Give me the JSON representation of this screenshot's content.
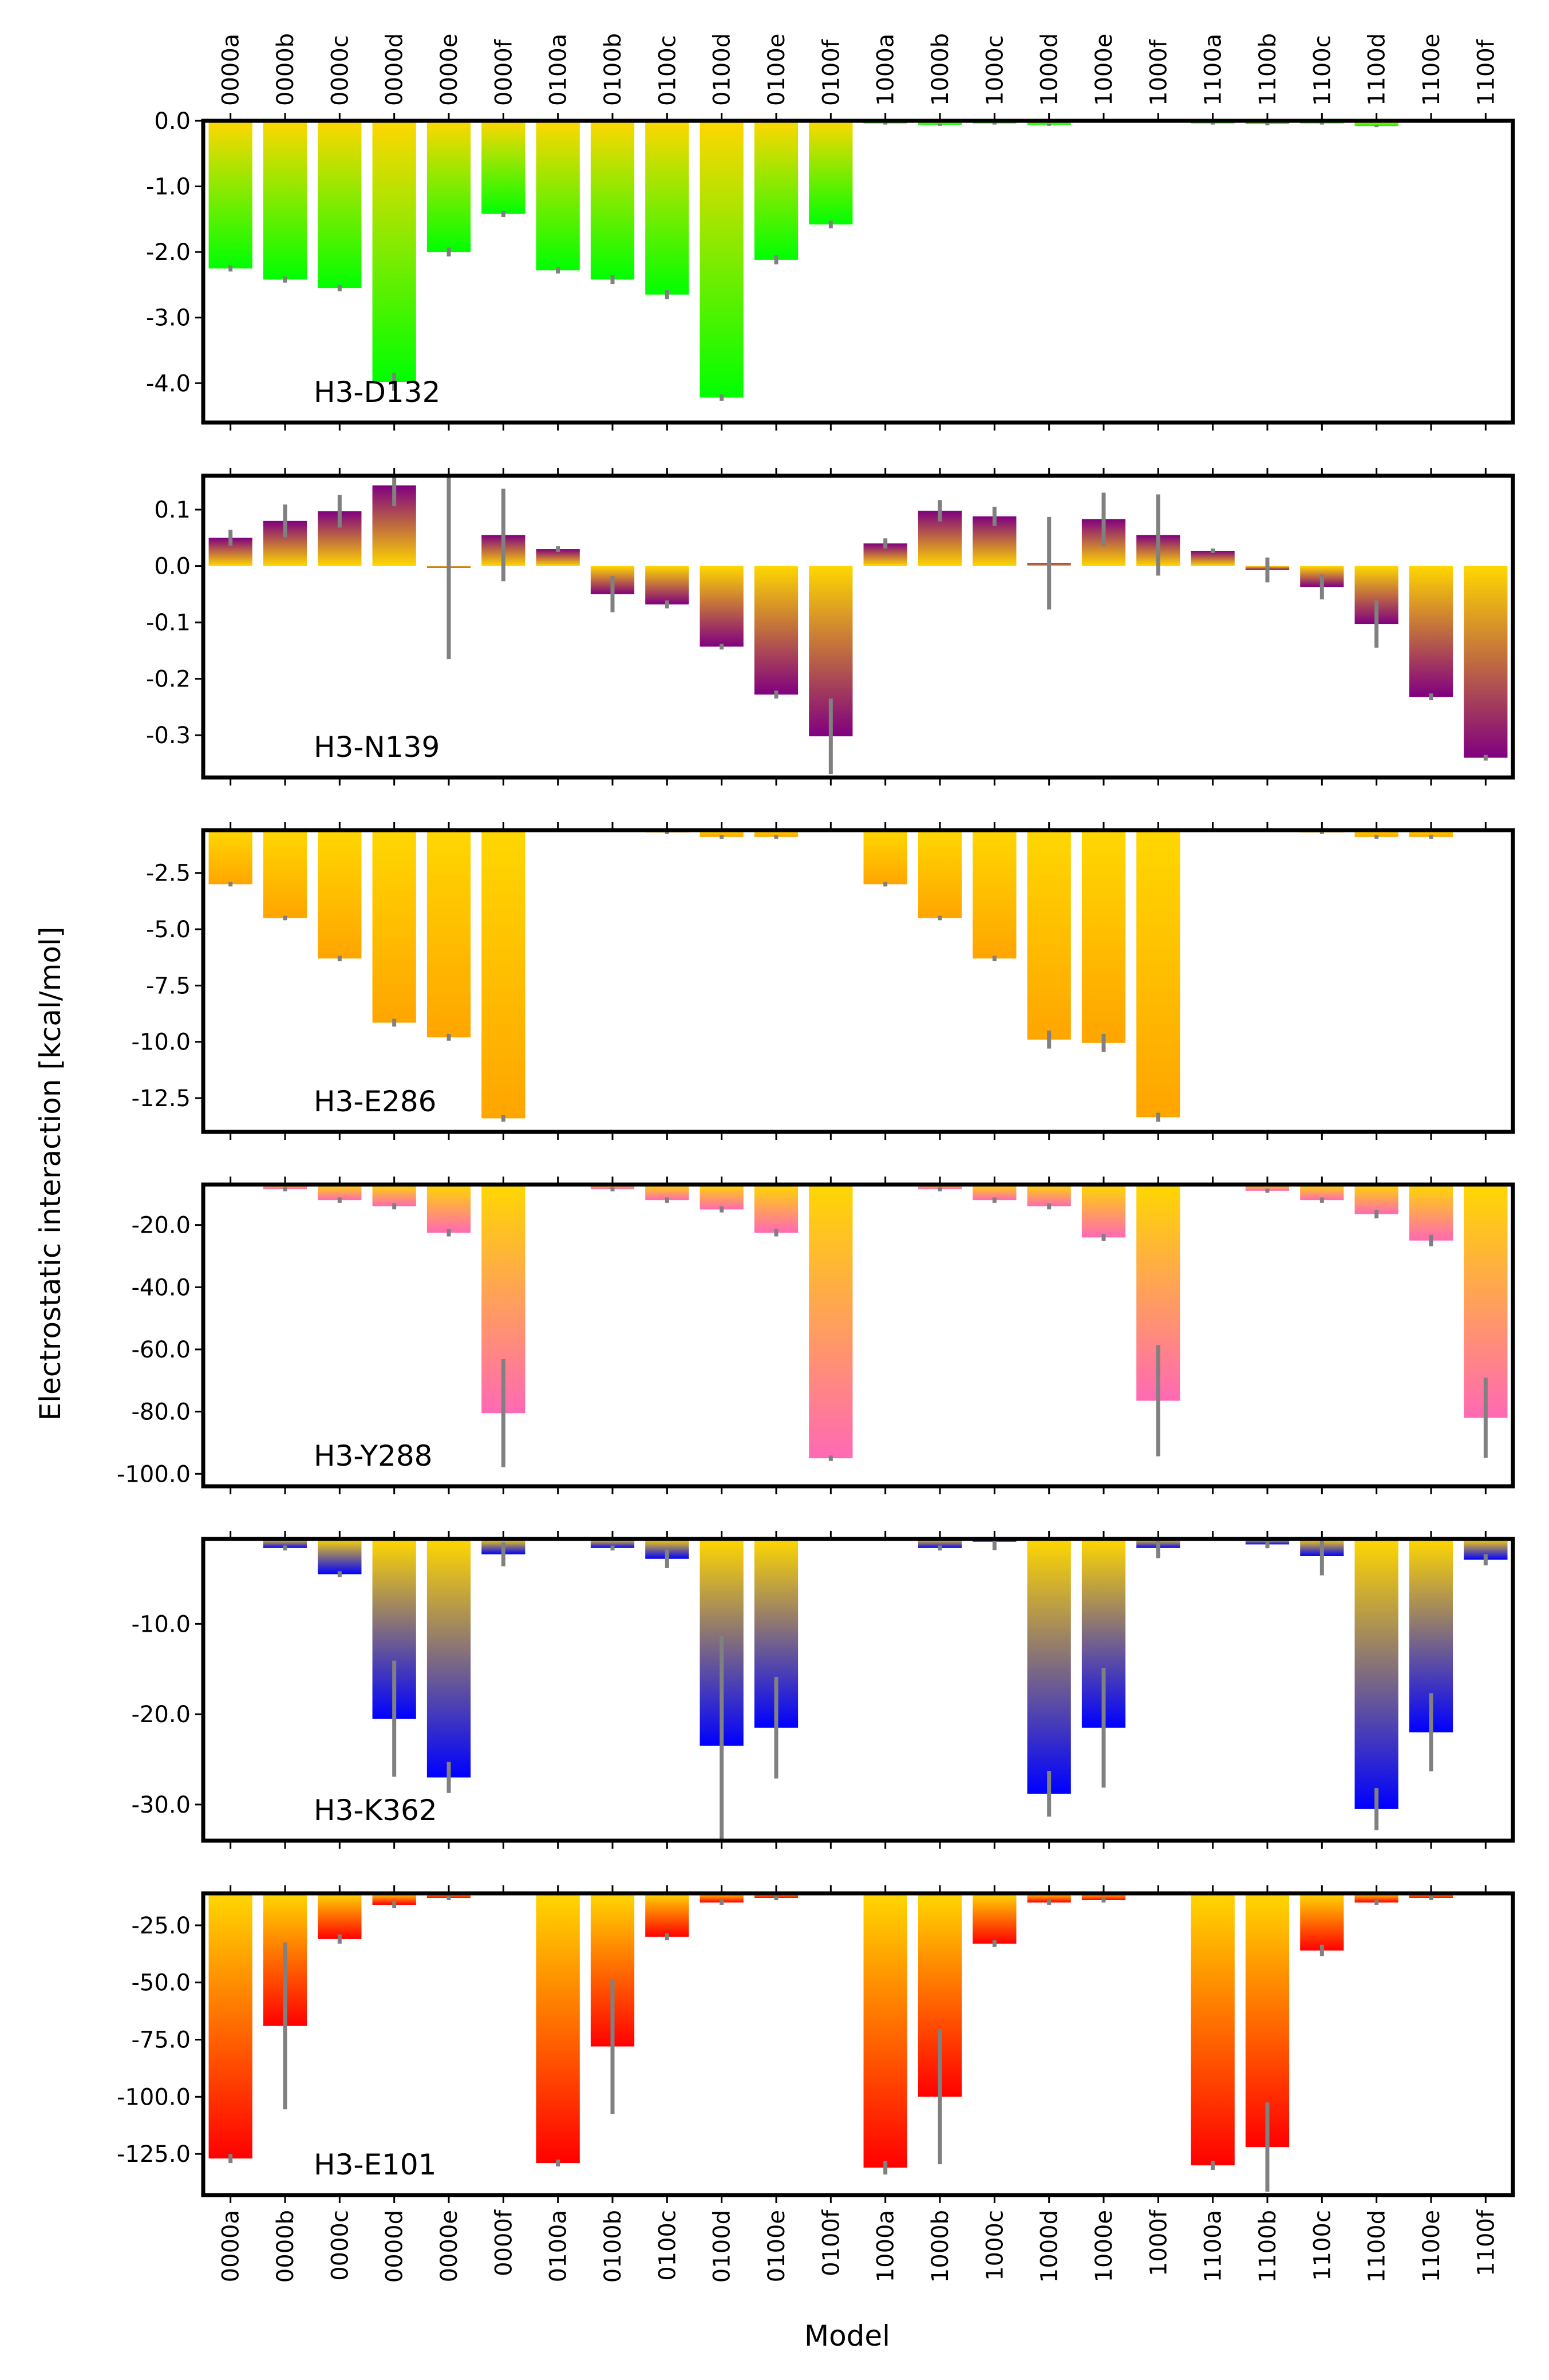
{
  "figure": {
    "ylabel": "Electrostatic interaction [kcal/mol]",
    "xlabel": "Model"
  },
  "chart_data": [
    {
      "type": "bar",
      "title": "H3-D132",
      "color": "#00ff00",
      "ylim": [
        -4.6,
        0.0
      ],
      "yticks": [
        0.0,
        -1.0,
        -2.0,
        -3.0,
        -4.0
      ],
      "ytick_labels": [
        "0.0",
        "-1.0",
        "-2.0",
        "-3.0",
        "-4.0"
      ],
      "categories": [
        "0000a",
        "0000b",
        "0000c",
        "0000d",
        "0000e",
        "0000f",
        "0100a",
        "0100b",
        "0100c",
        "0100d",
        "0100e",
        "0100f",
        "1000a",
        "1000b",
        "1000c",
        "1000d",
        "1000e",
        "1000f",
        "1100a",
        "1100b",
        "1100c",
        "1100d",
        "1100e",
        "1100f"
      ],
      "values": [
        -2.25,
        -2.42,
        -2.55,
        -3.98,
        -2.0,
        -1.42,
        -2.28,
        -2.42,
        -2.65,
        -4.22,
        -2.12,
        -1.58,
        -0.04,
        -0.06,
        -0.04,
        -0.06,
        0,
        0,
        -0.04,
        -0.05,
        -0.04,
        -0.08,
        0,
        0
      ],
      "errors": [
        0.03,
        0.03,
        0.03,
        0.12,
        0.05,
        0.03,
        0.03,
        0.05,
        0.05,
        0.03,
        0.05,
        0.04,
        0,
        0,
        0,
        0,
        0,
        0,
        0,
        0,
        0,
        0,
        0,
        0
      ]
    },
    {
      "type": "bar",
      "title": "H3-N139",
      "color": "#800080",
      "ylim": [
        -0.375,
        0.16
      ],
      "yticks": [
        0.1,
        0.0,
        -0.1,
        -0.2,
        -0.3
      ],
      "ytick_labels": [
        "0.1",
        "0.0",
        "-0.1",
        "-0.2",
        "-0.3"
      ],
      "categories": [
        "0000a",
        "0000b",
        "0000c",
        "0000d",
        "0000e",
        "0000f",
        "0100a",
        "0100b",
        "0100c",
        "0100d",
        "0100e",
        "0100f",
        "1000a",
        "1000b",
        "1000c",
        "1000d",
        "1000e",
        "1000f",
        "1100a",
        "1100b",
        "1100c",
        "1100d",
        "1100e",
        "1100f"
      ],
      "values": [
        0.05,
        0.08,
        0.097,
        0.143,
        -0.003,
        0.055,
        0.03,
        -0.05,
        -0.068,
        -0.143,
        -0.228,
        -0.302,
        0.04,
        0.098,
        0.088,
        0.005,
        0.083,
        0.055,
        0.027,
        -0.007,
        -0.037,
        -0.103,
        -0.232,
        -0.34
      ],
      "errors": [
        0.012,
        0.027,
        0.027,
        0.035,
        0.16,
        0.08,
        0.003,
        0.03,
        0.005,
        0.003,
        0.005,
        0.065,
        0.007,
        0.017,
        0.015,
        0.08,
        0.045,
        0.07,
        0.002,
        0.02,
        0.02,
        0.04,
        0.004,
        0.003
      ]
    },
    {
      "type": "bar",
      "title": "H3-E286",
      "color": "#ffa500",
      "ylim": [
        -14.0,
        -0.6
      ],
      "yticks": [
        -2.5,
        -5.0,
        -7.5,
        -10.0,
        -12.5
      ],
      "ytick_labels": [
        "-2.5",
        "-5.0",
        "-7.5",
        "-10.0",
        "-12.5"
      ],
      "categories": [
        "0000a",
        "0000b",
        "0000c",
        "0000d",
        "0000e",
        "0000f",
        "0100a",
        "0100b",
        "0100c",
        "0100d",
        "0100e",
        "0100f",
        "1000a",
        "1000b",
        "1000c",
        "1000d",
        "1000e",
        "1000f",
        "1100a",
        "1100b",
        "1100c",
        "1100d",
        "1100e",
        "1100f"
      ],
      "values": [
        -3.0,
        -4.5,
        -6.3,
        -9.15,
        -9.8,
        -13.4,
        0,
        0,
        -0.7,
        -0.9,
        -0.9,
        0,
        -3.0,
        -4.5,
        -6.3,
        -9.9,
        -10.05,
        -13.35,
        0,
        0,
        -0.7,
        -0.9,
        -0.9,
        0
      ],
      "errors": [
        0.05,
        0.05,
        0.07,
        0.12,
        0.1,
        0.1,
        0,
        0,
        0.02,
        0.03,
        0.03,
        0,
        0.05,
        0.05,
        0.07,
        0.35,
        0.35,
        0.15,
        0,
        0,
        0.02,
        0.03,
        0.03,
        0
      ]
    },
    {
      "type": "bar",
      "title": "H3-Y288",
      "color": "#ff69b4",
      "ylim": [
        -104.0,
        -7.0
      ],
      "yticks": [
        -20.0,
        -40.0,
        -60.0,
        -80.0,
        -100.0
      ],
      "ytick_labels": [
        "-20.0",
        "-40.0",
        "-60.0",
        "-80.0",
        "-100.0"
      ],
      "categories": [
        "0000a",
        "0000b",
        "0000c",
        "0000d",
        "0000e",
        "0000f",
        "0100a",
        "0100b",
        "0100c",
        "0100d",
        "0100e",
        "0100f",
        "1000a",
        "1000b",
        "1000c",
        "1000d",
        "1000e",
        "1000f",
        "1100a",
        "1100b",
        "1100c",
        "1100d",
        "1100e",
        "1100f"
      ],
      "values": [
        0,
        -8.5,
        -12.0,
        -14.0,
        -22.5,
        -80.5,
        0,
        -8.5,
        -12.0,
        -15.0,
        -22.5,
        -95.0,
        0,
        -8.5,
        -12.0,
        -14.0,
        -24.0,
        -76.5,
        0,
        -9.0,
        -12.0,
        -16.5,
        -25.0,
        -82.0
      ],
      "errors": [
        0,
        0.3,
        0.5,
        0.6,
        0.8,
        17.0,
        0,
        0.3,
        0.5,
        0.6,
        0.8,
        0.5,
        0,
        0.3,
        0.5,
        0.6,
        0.8,
        17.5,
        0,
        0.3,
        0.5,
        1.0,
        1.5,
        12.5
      ]
    },
    {
      "type": "bar",
      "title": "H3-K362",
      "color": "#0000ff",
      "ylim": [
        -34.0,
        -0.6
      ],
      "yticks": [
        -10.0,
        -20.0,
        -30.0
      ],
      "ytick_labels": [
        "-10.0",
        "-20.0",
        "-30.0"
      ],
      "categories": [
        "0000a",
        "0000b",
        "0000c",
        "0000d",
        "0000e",
        "0000f",
        "0100a",
        "0100b",
        "0100c",
        "0100d",
        "0100e",
        "0100f",
        "1000a",
        "1000b",
        "1000c",
        "1000d",
        "1000e",
        "1000f",
        "1100a",
        "1100b",
        "1100c",
        "1100d",
        "1100e",
        "1100f"
      ],
      "values": [
        0,
        -1.6,
        -4.5,
        -20.5,
        -27.0,
        -2.3,
        0,
        -1.6,
        -2.8,
        -23.5,
        -21.5,
        0,
        0,
        -1.6,
        -0.9,
        -28.8,
        -21.5,
        -1.6,
        0,
        -1.2,
        -2.5,
        -30.5,
        -22.0,
        -2.9
      ],
      "errors": [
        0,
        0.15,
        0.2,
        6.3,
        1.6,
        1.2,
        0,
        0.15,
        0.9,
        12.0,
        5.5,
        0,
        0,
        0.15,
        0.8,
        2.4,
        6.5,
        1.0,
        0,
        0.3,
        2.0,
        2.2,
        4.2,
        0.5
      ]
    },
    {
      "type": "bar",
      "title": "H3-E101",
      "color": "#ff0000",
      "ylim": [
        -143.0,
        -11.0
      ],
      "yticks": [
        -25.0,
        -50.0,
        -75.0,
        -100.0,
        -125.0
      ],
      "ytick_labels": [
        "-25.0",
        "-50.0",
        "-75.0",
        "-100.0",
        "-125.0"
      ],
      "categories": [
        "0000a",
        "0000b",
        "0000c",
        "0000d",
        "0000e",
        "0000f",
        "0100a",
        "0100b",
        "0100c",
        "0100d",
        "0100e",
        "0100f",
        "1000a",
        "1000b",
        "1000c",
        "1000d",
        "1000e",
        "1000f",
        "1100a",
        "1100b",
        "1100c",
        "1100d",
        "1100e",
        "1100f"
      ],
      "values": [
        -127.0,
        -69.0,
        -31.0,
        -16.0,
        -13.0,
        0,
        -129.0,
        -78.0,
        -30.0,
        -15.0,
        -13.0,
        0,
        -131.0,
        -100.0,
        -33.0,
        -15.0,
        -14.0,
        0,
        -130.0,
        -122.0,
        -36.0,
        -15.0,
        -13.0,
        0
      ],
      "errors": [
        1.5,
        36.0,
        1.5,
        1.0,
        0.5,
        0,
        1.0,
        29.0,
        1.0,
        0.5,
        0.5,
        0,
        2.5,
        29.0,
        1.0,
        0.5,
        0.5,
        0,
        1.5,
        19.0,
        2.0,
        0.5,
        0.5,
        0
      ]
    }
  ]
}
